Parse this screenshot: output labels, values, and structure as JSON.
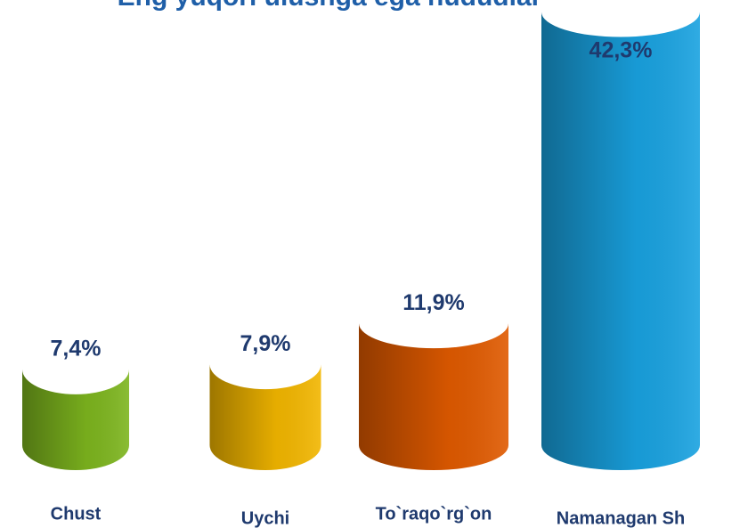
{
  "chart_data": {
    "type": "bar",
    "title": "Eng yuqori ulushga ega hududlar",
    "categories": [
      "Chust",
      "Uychi",
      "To`raqo`rg`on",
      "Namanagan Sh"
    ],
    "values": [
      7.4,
      7.9,
      11.9,
      42.3
    ],
    "value_labels": [
      "7,4%",
      "7,9%",
      "11,9%",
      "42,3%"
    ],
    "colors": [
      "#7db51e",
      "#f2b600",
      "#e05a00",
      "#19a2e0"
    ]
  }
}
